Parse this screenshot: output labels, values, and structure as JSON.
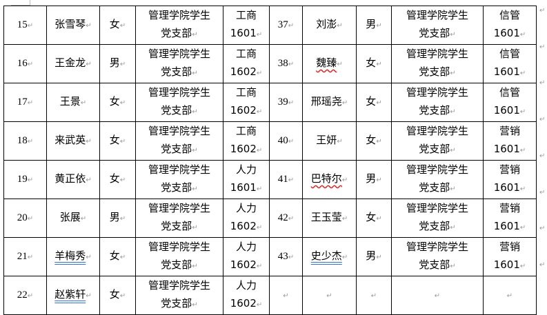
{
  "paragraph_mark": "↵",
  "rows": [
    {
      "left": {
        "no": "15",
        "name": "张雪琴",
        "gender": "女",
        "branch": [
          "管理学院学生",
          "党支部"
        ],
        "class": [
          "工商",
          "1601"
        ]
      },
      "right": {
        "no": "37",
        "name": "刘澎",
        "gender": "男",
        "branch": [
          "管理学院学生",
          "党支部"
        ],
        "class": [
          "信管",
          "1601"
        ]
      }
    },
    {
      "left": {
        "no": "16",
        "name": "王金龙",
        "gender": "男",
        "branch": [
          "管理学院学生",
          "党支部"
        ],
        "class": [
          "工商",
          "1602"
        ]
      },
      "right": {
        "no": "38",
        "name": "魏臻",
        "gender": "女",
        "branch": [
          "管理学院学生",
          "党支部"
        ],
        "class": [
          "信管",
          "1601"
        ],
        "mark": "spell"
      }
    },
    {
      "left": {
        "no": "17",
        "name": "王景",
        "gender": "女",
        "branch": [
          "管理学院学生",
          "党支部"
        ],
        "class": [
          "工商",
          "1602"
        ]
      },
      "right": {
        "no": "39",
        "name": "邢瑶尧",
        "gender": "女",
        "branch": [
          "管理学院学生",
          "党支部"
        ],
        "class": [
          "信管",
          "1601"
        ]
      }
    },
    {
      "left": {
        "no": "18",
        "name": "来武英",
        "gender": "女",
        "branch": [
          "管理学院学生",
          "党支部"
        ],
        "class": [
          "工商",
          "1602"
        ]
      },
      "right": {
        "no": "40",
        "name": "王妍",
        "gender": "女",
        "branch": [
          "管理学院学生",
          "党支部"
        ],
        "class": [
          "营销",
          "1601"
        ]
      }
    },
    {
      "left": {
        "no": "19",
        "name": "黄正依",
        "gender": "女",
        "branch": [
          "管理学院学生",
          "党支部"
        ],
        "class": [
          "人力",
          "1601"
        ]
      },
      "right": {
        "no": "41",
        "name": "巴特尔",
        "gender": "男",
        "branch": [
          "管理学院学生",
          "党支部"
        ],
        "class": [
          "营销",
          "1601"
        ],
        "mark": "spell"
      }
    },
    {
      "left": {
        "no": "20",
        "name": "张展",
        "gender": "男",
        "branch": [
          "管理学院学生",
          "党支部"
        ],
        "class": [
          "人力",
          "1602"
        ]
      },
      "right": {
        "no": "42",
        "name": "王玉莹",
        "gender": "女",
        "branch": [
          "管理学院学生",
          "党支部"
        ],
        "class": [
          "营销",
          "1601"
        ]
      }
    },
    {
      "left": {
        "no": "21",
        "name": "羊梅秀",
        "gender": "女",
        "branch": [
          "管理学院学生",
          "党支部"
        ],
        "class": [
          "人力",
          "1602"
        ],
        "mark": "grammar"
      },
      "right": {
        "no": "43",
        "name": "史少杰",
        "gender": "男",
        "branch": [
          "管理学院学生",
          "党支部"
        ],
        "class": [
          "营销",
          "1601"
        ],
        "mark": "grammar"
      }
    },
    {
      "left": {
        "no": "22",
        "name": "赵紫轩",
        "gender": "女",
        "branch": [
          "管理学院学生",
          "党支部"
        ],
        "class": [
          "人力",
          "1602"
        ],
        "mark": "grammar"
      },
      "right": {
        "no": "",
        "name": "",
        "gender": "",
        "branch": [
          "",
          ""
        ],
        "class": [
          "",
          ""
        ]
      }
    }
  ]
}
